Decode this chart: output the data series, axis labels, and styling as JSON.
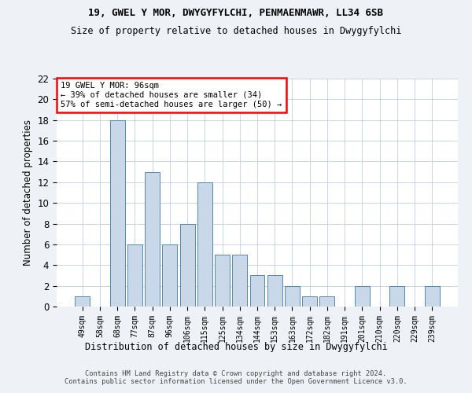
{
  "title1": "19, GWEL Y MOR, DWYGYFYLCHI, PENMAENMAWR, LL34 6SB",
  "title2": "Size of property relative to detached houses in Dwygyfylchi",
  "xlabel": "Distribution of detached houses by size in Dwygyfylchi",
  "ylabel": "Number of detached properties",
  "categories": [
    "49sqm",
    "58sqm",
    "68sqm",
    "77sqm",
    "87sqm",
    "96sqm",
    "106sqm",
    "115sqm",
    "125sqm",
    "134sqm",
    "144sqm",
    "153sqm",
    "163sqm",
    "172sqm",
    "182sqm",
    "191sqm",
    "201sqm",
    "210sqm",
    "220sqm",
    "229sqm",
    "239sqm"
  ],
  "values": [
    1,
    0,
    18,
    6,
    13,
    6,
    8,
    12,
    5,
    5,
    3,
    3,
    2,
    1,
    1,
    0,
    2,
    0,
    2,
    0,
    2
  ],
  "bar_color": "#c8d8e8",
  "bar_edge_color": "#5588aa",
  "ylim": [
    0,
    22
  ],
  "yticks": [
    0,
    2,
    4,
    6,
    8,
    10,
    12,
    14,
    16,
    18,
    20,
    22
  ],
  "annotation_title": "19 GWEL Y MOR: 96sqm",
  "annotation_line1": "← 39% of detached houses are smaller (34)",
  "annotation_line2": "57% of semi-detached houses are larger (50) →",
  "footer1": "Contains HM Land Registry data © Crown copyright and database right 2024.",
  "footer2": "Contains public sector information licensed under the Open Government Licence v3.0.",
  "bg_color": "#eef2f7",
  "plot_bg_color": "#ffffff"
}
